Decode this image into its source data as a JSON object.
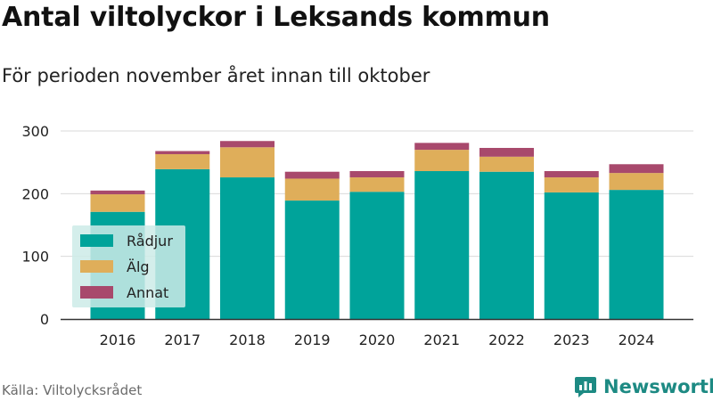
{
  "header": {
    "title": "Antal viltolyckor i Leksands kommun",
    "subtitle": "För perioden november året innan till oktober"
  },
  "footer": {
    "source": "Källa: Viltolycksrådet",
    "brand": "Newsworthy"
  },
  "colors": {
    "radjur": "#00a39a",
    "alg": "#dfae5a",
    "annat": "#a8496c",
    "grid": "#d9d9d9",
    "legend_bg": "#cdebe8",
    "brand": "#1d8a83"
  },
  "chart_data": {
    "type": "bar",
    "stacked": true,
    "categories": [
      "2016",
      "2017",
      "2018",
      "2019",
      "2020",
      "2021",
      "2022",
      "2023",
      "2024"
    ],
    "series": [
      {
        "name": "Rådjur",
        "values": [
          171,
          239,
          226,
          189,
          203,
          236,
          235,
          202,
          206
        ]
      },
      {
        "name": "Älg",
        "values": [
          28,
          24,
          48,
          35,
          23,
          34,
          24,
          24,
          27
        ]
      },
      {
        "name": "Annat",
        "values": [
          6,
          5,
          10,
          11,
          10,
          11,
          14,
          10,
          14
        ]
      }
    ],
    "yticks": [
      "0",
      "100",
      "200",
      "300"
    ],
    "ylim": [
      0,
      300
    ],
    "grid": true,
    "legend_position": "bottom-left inside"
  }
}
